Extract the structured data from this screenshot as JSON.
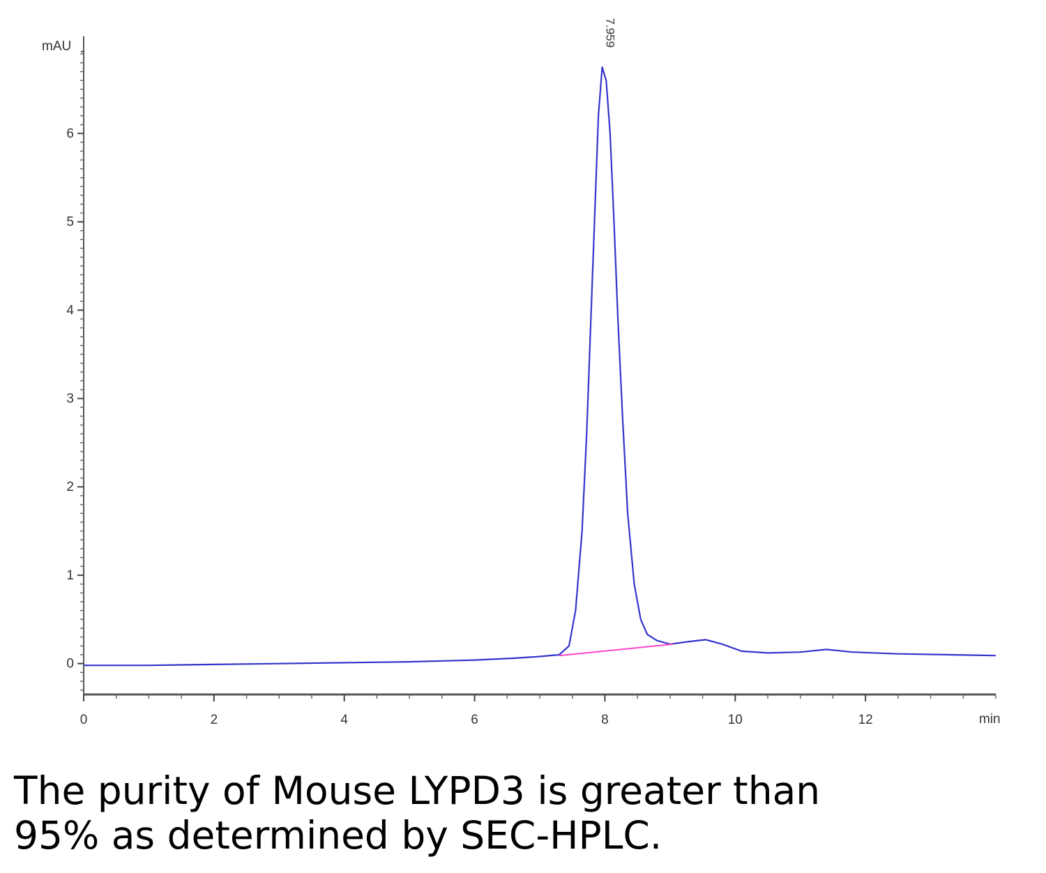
{
  "chart_data": {
    "type": "line",
    "title": "",
    "xlabel": "min",
    "ylabel": "mAU",
    "xlim": [
      0,
      14
    ],
    "ylim": [
      -0.35,
      7.1
    ],
    "x_ticks": [
      0,
      2,
      4,
      6,
      8,
      10,
      12
    ],
    "y_ticks": [
      0,
      1,
      2,
      3,
      4,
      5,
      6
    ],
    "grid": false,
    "peak_label": "7.959",
    "series": [
      {
        "color": "#3333cc",
        "points": [
          [
            0.0,
            -0.02
          ],
          [
            1.0,
            -0.02
          ],
          [
            2.0,
            -0.01
          ],
          [
            3.0,
            0.0
          ],
          [
            4.0,
            0.01
          ],
          [
            5.0,
            0.02
          ],
          [
            6.0,
            0.04
          ],
          [
            6.6,
            0.06
          ],
          [
            7.0,
            0.08
          ],
          [
            7.3,
            0.1
          ],
          [
            7.45,
            0.2
          ],
          [
            7.55,
            0.6
          ],
          [
            7.65,
            1.5
          ],
          [
            7.72,
            2.6
          ],
          [
            7.78,
            3.8
          ],
          [
            7.84,
            5.0
          ],
          [
            7.9,
            6.2
          ],
          [
            7.959,
            6.75
          ],
          [
            8.02,
            6.6
          ],
          [
            8.08,
            6.0
          ],
          [
            8.14,
            5.0
          ],
          [
            8.2,
            3.9
          ],
          [
            8.27,
            2.8
          ],
          [
            8.35,
            1.7
          ],
          [
            8.45,
            0.9
          ],
          [
            8.55,
            0.5
          ],
          [
            8.65,
            0.33
          ],
          [
            8.8,
            0.26
          ],
          [
            9.0,
            0.22
          ],
          [
            9.3,
            0.25
          ],
          [
            9.55,
            0.27
          ],
          [
            9.8,
            0.22
          ],
          [
            10.1,
            0.14
          ],
          [
            10.5,
            0.12
          ],
          [
            11.0,
            0.13
          ],
          [
            11.4,
            0.16
          ],
          [
            11.8,
            0.13
          ],
          [
            12.5,
            0.11
          ],
          [
            13.3,
            0.1
          ],
          [
            14.0,
            0.09
          ]
        ]
      },
      {
        "color": "#ff44cc",
        "points": [
          [
            7.3,
            0.09
          ],
          [
            9.05,
            0.22
          ]
        ]
      }
    ]
  },
  "caption": {
    "line1": "The purity of Mouse LYPD3 is greater than",
    "line2": "95% as determined by SEC-HPLC."
  }
}
